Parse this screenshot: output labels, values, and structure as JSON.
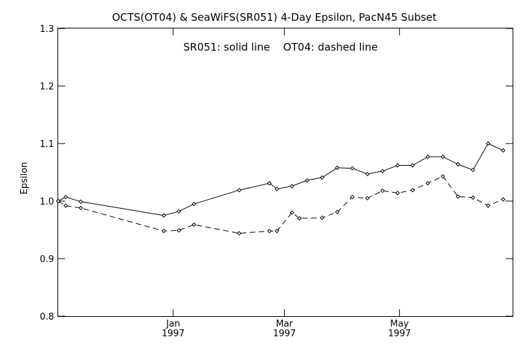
{
  "chart_data": {
    "type": "line",
    "title": "OCTS(OT04) & SeaWiFS(SR051) 4-Day Epsilon, PacN45 Subset",
    "legend_text": "SR051: solid line    OT04: dashed line",
    "xlabel": "",
    "ylabel": "Epsilon",
    "ylim": [
      0.8,
      1.3
    ],
    "y_ticks": [
      "0.8",
      "0.9",
      "1.0",
      "1.1",
      "1.2",
      "1.3"
    ],
    "x_ticks": [
      {
        "date": "1997-01-01",
        "month": "Jan",
        "year": "1997"
      },
      {
        "date": "1997-03-01",
        "month": "Mar",
        "year": "1997"
      },
      {
        "date": "1997-05-01",
        "month": "May",
        "year": "1997"
      }
    ],
    "xlim": [
      "1996-11-01",
      "1997-06-30"
    ],
    "series": [
      {
        "name": "SR051",
        "style": "solid",
        "points": [
          [
            "1996-11-01",
            1.0
          ],
          [
            "1996-11-05",
            1.007
          ],
          [
            "1996-11-13",
            0.999
          ],
          [
            "1996-12-27",
            0.975
          ],
          [
            "1997-01-04",
            0.982
          ],
          [
            "1997-01-12",
            0.995
          ],
          [
            "1997-02-05",
            1.019
          ],
          [
            "1997-02-21",
            1.031
          ],
          [
            "1997-02-25",
            1.021
          ],
          [
            "1997-03-05",
            1.026
          ],
          [
            "1997-03-13",
            1.036
          ],
          [
            "1997-03-21",
            1.041
          ],
          [
            "1997-03-29",
            1.058
          ],
          [
            "1997-04-06",
            1.057
          ],
          [
            "1997-04-14",
            1.047
          ],
          [
            "1997-04-22",
            1.052
          ],
          [
            "1997-04-30",
            1.062
          ],
          [
            "1997-05-08",
            1.062
          ],
          [
            "1997-05-16",
            1.077
          ],
          [
            "1997-05-24",
            1.077
          ],
          [
            "1997-06-01",
            1.064
          ],
          [
            "1997-06-09",
            1.054
          ],
          [
            "1997-06-17",
            1.1
          ],
          [
            "1997-06-25",
            1.088
          ]
        ]
      },
      {
        "name": "OT04",
        "style": "dashed",
        "points": [
          [
            "1996-11-01",
            1.0
          ],
          [
            "1996-11-05",
            0.992
          ],
          [
            "1996-11-13",
            0.988
          ],
          [
            "1996-12-27",
            0.948
          ],
          [
            "1997-01-04",
            0.949
          ],
          [
            "1997-01-12",
            0.959
          ],
          [
            "1997-02-05",
            0.944
          ],
          [
            "1997-02-21",
            0.948
          ],
          [
            "1997-02-25",
            0.948
          ],
          [
            "1997-03-05",
            0.98
          ],
          [
            "1997-03-09",
            0.97
          ],
          [
            "1997-03-21",
            0.971
          ],
          [
            "1997-03-29",
            0.981
          ],
          [
            "1997-04-06",
            1.007
          ],
          [
            "1997-04-14",
            1.005
          ],
          [
            "1997-04-22",
            1.018
          ],
          [
            "1997-04-30",
            1.014
          ],
          [
            "1997-05-08",
            1.019
          ],
          [
            "1997-05-16",
            1.031
          ],
          [
            "1997-05-24",
            1.043
          ],
          [
            "1997-06-01",
            1.008
          ],
          [
            "1997-06-09",
            1.006
          ],
          [
            "1997-06-17",
            0.992
          ],
          [
            "1997-06-25",
            1.003
          ]
        ]
      }
    ],
    "grid": false,
    "legend_position": "top-center"
  }
}
